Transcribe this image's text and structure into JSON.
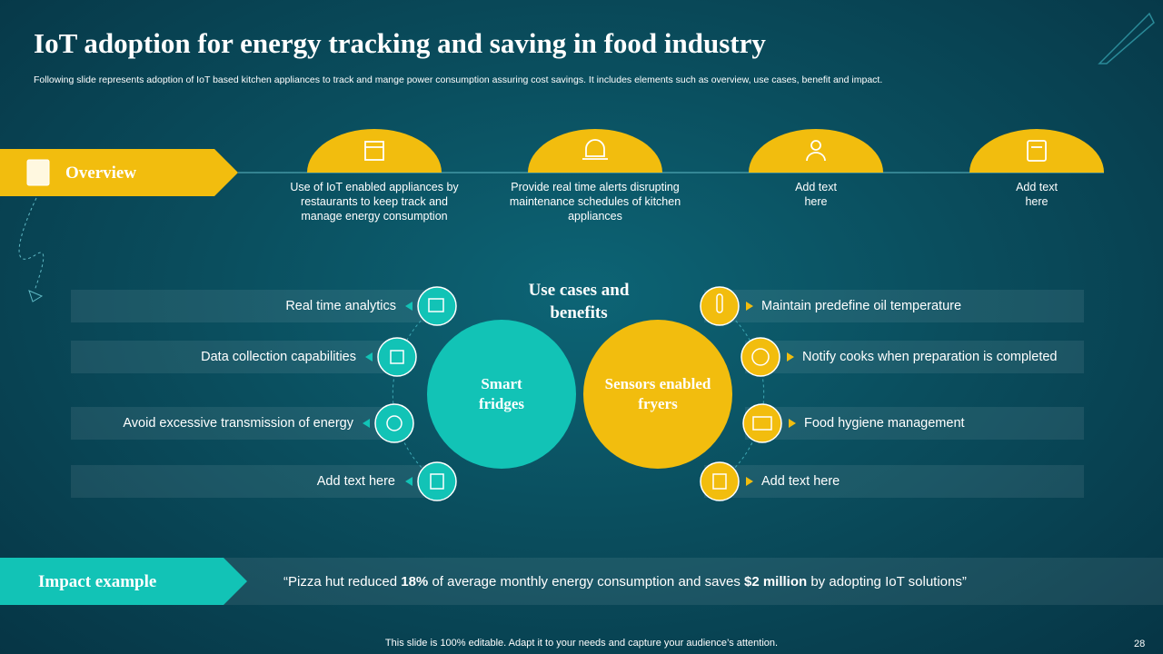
{
  "header": {
    "title": "IoT adoption for energy tracking and saving in food industry",
    "subtitle": "Following slide represents adoption of IoT based kitchen appliances to track and mange power consumption assuring cost savings. It includes elements such as overview, use cases, benefit and impact."
  },
  "overview": {
    "label": "Overview",
    "items": [
      "Use of IoT enabled appliances by restaurants to keep track and manage energy consumption",
      "Provide real time alerts disrupting maintenance schedules of kitchen appliances",
      "Add text here",
      "Add text here"
    ]
  },
  "use_cases": {
    "title": "Use cases and benefits",
    "left": {
      "label": "Smart fridges",
      "items": [
        "Real time analytics",
        "Data collection capabilities",
        "Avoid excessive transmission of energy",
        "Add text here"
      ]
    },
    "right": {
      "label": "Sensors enabled fryers",
      "items": [
        "Maintain predefine oil temperature",
        "Notify cooks when preparation is completed",
        "Food hygiene management",
        "Add text here"
      ]
    }
  },
  "impact": {
    "label": "Impact example",
    "quote_parts": [
      "“Pizza hut reduced ",
      "18%",
      " of average monthly energy consumption and saves ",
      "$2 million",
      " by adopting IoT solutions”"
    ]
  },
  "footer": {
    "note": "This slide is 100% editable. Adapt it to your needs and capture your audience’s attention.",
    "page": "28"
  }
}
